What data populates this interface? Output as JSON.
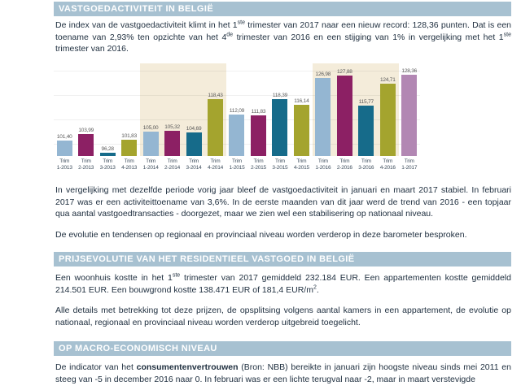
{
  "headers": {
    "s1": "VASTGOEDACTIVITEIT IN BELGIË",
    "s2": "PRIJSEVOLUTIE VAN HET RESIDENTIEEL VASTGOED IN BELGIË",
    "s3": "OP MACRO-ECONOMISCH NIVEAU"
  },
  "paragraphs": {
    "p1": {
      "t1": "De index van de vastgoedactiviteit klimt in het 1",
      "sup1": "ste",
      "t2": " trimester van 2017 naar een nieuw record: 128,36 punten. Dat is een toename van 2,93% ten opzichte van het 4",
      "sup2": "de",
      "t3": " trimester van 2016 en een stijging van 1% in vergelijking met het 1",
      "sup3": "ste",
      "t4": " trimester van 2016."
    },
    "p2": "In vergelijking met dezelfde periode vorig jaar bleef de vastgoedactiviteit in januari en maart 2017 stabiel. In februari 2017 was er een activiteittoename van 3,6%. In de eerste maanden van dit jaar werd de trend van 2016 - een topjaar qua aantal vastgoedtransacties - doorgezet, maar we zien wel een stabilisering op nationaal niveau.",
    "p3": "De evolutie en tendensen op regionaal en provinciaal niveau worden verderop in deze barometer besproken.",
    "p4": {
      "t1": "Een woonhuis kostte in het 1",
      "sup1": "ste",
      "t2": " trimester van 2017 gemiddeld 232.184 EUR. Een appartementen kostte gemiddeld 214.501 EUR. Een bouwgrond kostte 138.471 EUR of 181,4 EUR/m",
      "sup2": "2",
      "t3": "."
    },
    "p5": "Alle details met betrekking tot deze prijzen, de opsplitsing volgens aantal kamers in een appartement, de evolutie op nationaal, regionaal en provinciaal niveau worden verderop uitgebreid toegelicht.",
    "p6": {
      "pre": "De indicator van het ",
      "bold": "consumentenvertrouwen",
      "post": " (Bron: NBB) bereikte in januari zijn hoogste niveau sinds mei 2011 en steeg van -5 in december 2016 naar 0. In februari was er een lichte terugval naar -2, maar in maart verstevigde"
    }
  },
  "chart_data": {
    "type": "bar",
    "title": "",
    "categories": [
      "Trim 1-2013",
      "Trim 2-2013",
      "Trim 3-2013",
      "Trim 4-2013",
      "Trim 1-2014",
      "Trim 2-2014",
      "Trim 3-2014",
      "Trim 4-2014",
      "Trim 1-2015",
      "Trim 2-2015",
      "Trim 3-2015",
      "Trim 4-2015",
      "Trim 1-2016",
      "Trim 2-2016",
      "Trim 3-2016",
      "Trim 4-2016",
      "Trim 1-2017"
    ],
    "values": [
      101.4,
      103.99,
      96.28,
      101.83,
      105.0,
      105.32,
      104.69,
      118.43,
      112.09,
      111.83,
      118.39,
      116.14,
      126.98,
      127.88,
      115.77,
      124.71,
      128.36
    ],
    "value_labels": [
      "101,40",
      "103,99",
      "96,28",
      "101,83",
      "105,00",
      "105,32",
      "104,69",
      "118,43",
      "112,09",
      "111,83",
      "118,39",
      "116,14",
      "126,98",
      "127,88",
      "115,77",
      "124,71",
      "128,36"
    ],
    "quarter_colors": [
      "#94b6d2",
      "#8c2064",
      "#166b8a",
      "#a4a42e"
    ],
    "last_bar_color": "#b287b3",
    "highlight_groups": [
      {
        "start": 4,
        "end": 8
      },
      {
        "start": 12,
        "end": 16
      }
    ],
    "highlight_color": "#f4ecda",
    "gridline_values": [
      100,
      110,
      120,
      130
    ],
    "ylim": [
      95,
      133
    ],
    "xlabel": "",
    "ylabel": "",
    "legend": "none",
    "grid": "horizontal-faint"
  },
  "colors": {
    "section_band": "#a7c1d1",
    "body_text": "#203040",
    "bar_value_label": "#595959"
  }
}
